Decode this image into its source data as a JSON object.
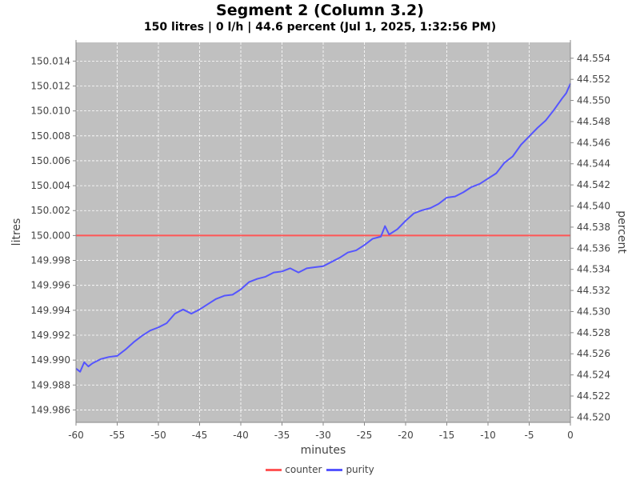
{
  "header": {
    "title": "Segment  2 (Column  3.2)",
    "subtitle": "150 litres | 0 l/h | 44.6 percent (Jul 1, 2025, 1:32:56 PM)"
  },
  "colors": {
    "plot_background": "#c0c0c0",
    "counter": "#ff5555",
    "purity": "#5555ff"
  },
  "chart_data": {
    "type": "line",
    "title": "Segment  2 (Column  3.2)",
    "subtitle": "150 litres | 0 l/h | 44.6 percent (Jul 1, 2025, 1:32:56 PM)",
    "xlabel": "minutes",
    "ylabel": "litres",
    "y2label": "percent",
    "xlim": [
      -60,
      0
    ],
    "ylim": [
      149.985,
      150.0155
    ],
    "y2lim": [
      44.5195,
      44.5555
    ],
    "grid": true,
    "legend_position": "bottom",
    "x_ticks": [
      "-60",
      "-55",
      "-50",
      "-45",
      "-40",
      "-35",
      "-30",
      "-25",
      "-20",
      "-15",
      "-10",
      "-5",
      "0"
    ],
    "y_ticks": [
      "149.986",
      "149.988",
      "149.990",
      "149.992",
      "149.994",
      "149.996",
      "149.998",
      "150.000",
      "150.002",
      "150.004",
      "150.006",
      "150.008",
      "150.010",
      "150.012",
      "150.014"
    ],
    "y2_ticks": [
      "44.520",
      "44.522",
      "44.524",
      "44.526",
      "44.528",
      "44.530",
      "44.532",
      "44.534",
      "44.536",
      "44.538",
      "44.540",
      "44.542",
      "44.544",
      "44.546",
      "44.548",
      "44.550",
      "44.552",
      "44.554"
    ],
    "series": [
      {
        "name": "counter",
        "axis": "left",
        "x": [
          -60,
          0
        ],
        "values": [
          150.0,
          150.0
        ]
      },
      {
        "name": "purity",
        "axis": "right",
        "x": [
          -60,
          -59.5,
          -59,
          -58.5,
          -58,
          -57,
          -56,
          -55,
          -54,
          -53,
          -52,
          -51,
          -50,
          -49,
          -48,
          -47,
          -46,
          -45,
          -44,
          -43,
          -42,
          -41,
          -40,
          -39,
          -38,
          -37,
          -36,
          -35,
          -34,
          -33,
          -32,
          -31,
          -30,
          -29,
          -28,
          -27,
          -26,
          -25,
          -24,
          -23,
          -22.5,
          -22,
          -21,
          -20,
          -19,
          -18,
          -17,
          -16,
          -15,
          -14,
          -13,
          -12,
          -11,
          -10,
          -9,
          -8,
          -7,
          -6,
          -5,
          -4,
          -3,
          -2,
          -1,
          -0.5,
          0
        ],
        "values": [
          44.5246,
          44.5243,
          44.5252,
          44.5248,
          44.5251,
          44.5255,
          44.5257,
          44.5258,
          44.5264,
          44.5271,
          44.5277,
          44.5282,
          44.5285,
          44.5289,
          44.5298,
          44.5302,
          44.5298,
          44.5302,
          44.5307,
          44.5312,
          44.5315,
          44.5316,
          44.5321,
          44.5328,
          44.5331,
          44.5333,
          44.5337,
          44.5338,
          44.5341,
          44.5337,
          44.5341,
          44.5342,
          44.5343,
          44.5347,
          44.5351,
          44.5356,
          44.5358,
          44.5363,
          44.5369,
          44.5371,
          44.5381,
          44.5373,
          44.5378,
          44.5386,
          44.5393,
          44.5396,
          44.5398,
          44.5402,
          44.5408,
          44.5409,
          44.5413,
          44.5418,
          44.5421,
          44.5426,
          44.5431,
          44.5441,
          44.5447,
          44.5458,
          44.5466,
          44.5474,
          44.5481,
          44.5491,
          44.5502,
          44.5507,
          44.5516
        ]
      }
    ]
  },
  "legend": {
    "items": [
      {
        "label": "counter"
      },
      {
        "label": "purity"
      }
    ]
  }
}
